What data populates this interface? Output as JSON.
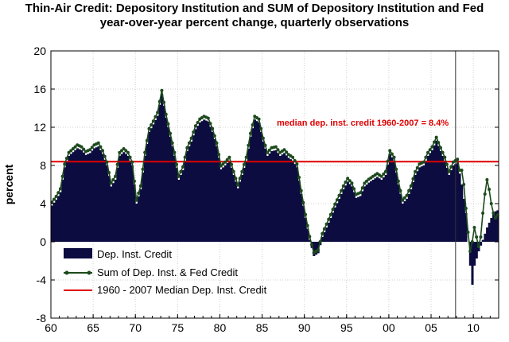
{
  "chart_data": {
    "type": "bar",
    "title_line1": "Thin-Air Credit: Depository Institution and SUM of Depository Institution and Fed",
    "title_line2": "year-over-year percent change, quarterly observations",
    "ylabel": "percent",
    "xlabel": "",
    "xlim": [
      1960,
      2013
    ],
    "ylim": [
      -8,
      20
    ],
    "yticks": [
      -8,
      -4,
      0,
      4,
      8,
      12,
      16,
      20
    ],
    "xticks": [
      1960,
      1965,
      1970,
      1975,
      1980,
      1985,
      1990,
      1995,
      2000,
      2005,
      2010
    ],
    "xtick_labels": [
      "60",
      "65",
      "70",
      "75",
      "80",
      "85",
      "90",
      "95",
      "00",
      "05",
      "10"
    ],
    "grid": true,
    "legend_position": "bottom-left",
    "vline_x": 2007.9,
    "annotation": "median dep. inst. credit 1960-2007 = 8.4%",
    "knots": [
      [
        1960.0,
        3.8
      ],
      [
        1960.5,
        4.4
      ],
      [
        1961.0,
        5.2
      ],
      [
        1961.5,
        7.8
      ],
      [
        1962.0,
        9.0
      ],
      [
        1962.5,
        9.4
      ],
      [
        1963.0,
        9.8
      ],
      [
        1963.5,
        9.6
      ],
      [
        1964.0,
        9.1
      ],
      [
        1964.5,
        9.3
      ],
      [
        1965.0,
        9.8
      ],
      [
        1965.5,
        10.0
      ],
      [
        1966.0,
        9.2
      ],
      [
        1966.5,
        8.0
      ],
      [
        1967.0,
        5.8
      ],
      [
        1967.5,
        6.5
      ],
      [
        1968.0,
        9.0
      ],
      [
        1968.5,
        9.4
      ],
      [
        1969.0,
        9.0
      ],
      [
        1969.5,
        8.0
      ],
      [
        1970.0,
        4.0
      ],
      [
        1970.5,
        5.5
      ],
      [
        1971.0,
        9.0
      ],
      [
        1971.5,
        11.5
      ],
      [
        1972.0,
        12.3
      ],
      [
        1972.5,
        13.2
      ],
      [
        1973.0,
        15.5
      ],
      [
        1973.5,
        13.0
      ],
      [
        1974.0,
        11.0
      ],
      [
        1974.5,
        9.0
      ],
      [
        1975.0,
        6.5
      ],
      [
        1975.5,
        7.5
      ],
      [
        1976.0,
        9.5
      ],
      [
        1976.5,
        10.5
      ],
      [
        1977.0,
        11.8
      ],
      [
        1977.5,
        12.5
      ],
      [
        1978.0,
        12.8
      ],
      [
        1978.5,
        12.6
      ],
      [
        1979.0,
        11.5
      ],
      [
        1979.5,
        10.0
      ],
      [
        1980.0,
        7.6
      ],
      [
        1980.5,
        8.0
      ],
      [
        1981.0,
        8.5
      ],
      [
        1981.5,
        7.0
      ],
      [
        1982.0,
        5.6
      ],
      [
        1982.5,
        7.0
      ],
      [
        1983.0,
        8.5
      ],
      [
        1983.5,
        11.0
      ],
      [
        1984.0,
        12.8
      ],
      [
        1984.5,
        12.5
      ],
      [
        1985.0,
        10.5
      ],
      [
        1985.5,
        9.0
      ],
      [
        1986.0,
        9.5
      ],
      [
        1986.5,
        9.6
      ],
      [
        1987.0,
        9.0
      ],
      [
        1987.5,
        9.3
      ],
      [
        1988.0,
        8.8
      ],
      [
        1988.5,
        8.5
      ],
      [
        1989.0,
        7.8
      ],
      [
        1989.5,
        5.0
      ],
      [
        1990.0,
        2.5
      ],
      [
        1990.5,
        0.2
      ],
      [
        1991.0,
        -1.5
      ],
      [
        1991.5,
        -1.2
      ],
      [
        1992.0,
        0.5
      ],
      [
        1992.5,
        1.5
      ],
      [
        1993.0,
        2.5
      ],
      [
        1993.5,
        3.6
      ],
      [
        1994.0,
        4.5
      ],
      [
        1994.5,
        5.5
      ],
      [
        1995.0,
        6.3
      ],
      [
        1995.5,
        5.8
      ],
      [
        1996.0,
        4.6
      ],
      [
        1996.5,
        4.8
      ],
      [
        1997.0,
        5.8
      ],
      [
        1997.5,
        6.2
      ],
      [
        1998.0,
        6.5
      ],
      [
        1998.5,
        6.8
      ],
      [
        1999.0,
        6.5
      ],
      [
        1999.5,
        7.0
      ],
      [
        2000.0,
        9.2
      ],
      [
        2000.5,
        8.5
      ],
      [
        2001.0,
        6.0
      ],
      [
        2001.5,
        4.0
      ],
      [
        2002.0,
        4.5
      ],
      [
        2002.5,
        5.5
      ],
      [
        2003.0,
        7.0
      ],
      [
        2003.5,
        7.8
      ],
      [
        2004.0,
        8.0
      ],
      [
        2004.5,
        9.0
      ],
      [
        2005.0,
        9.6
      ],
      [
        2005.5,
        10.6
      ],
      [
        2006.0,
        9.5
      ],
      [
        2006.5,
        8.5
      ],
      [
        2007.0,
        7.0
      ],
      [
        2007.5,
        8.0
      ],
      [
        2008.0,
        8.3
      ],
      [
        2008.5,
        6.0
      ],
      [
        2009.0,
        3.0
      ],
      [
        2009.25,
        0.0
      ],
      [
        2009.5,
        -2.5
      ],
      [
        2009.75,
        -4.5
      ],
      [
        2010.0,
        -2.5
      ],
      [
        2010.5,
        -1.0
      ],
      [
        2011.0,
        0.2
      ],
      [
        2011.5,
        1.5
      ],
      [
        2012.0,
        2.5
      ],
      [
        2012.5,
        3.2
      ],
      [
        2012.99,
        3.4
      ]
    ],
    "series": [
      {
        "name": "Dep. Inst. Credit",
        "type": "bar",
        "color": "#0c0c40"
      },
      {
        "name": "Sum of Dep. Inst. & Fed Credit",
        "type": "line",
        "color": "#1d4a1d",
        "overrides": [
          [
            2008.5,
            7.5
          ],
          [
            2008.75,
            6.0
          ],
          [
            2009.0,
            3.5
          ],
          [
            2009.25,
            1.0
          ],
          [
            2009.5,
            -1.0
          ],
          [
            2009.75,
            0.0
          ],
          [
            2010.0,
            1.5
          ],
          [
            2010.25,
            0.5
          ],
          [
            2010.5,
            -0.5
          ],
          [
            2010.75,
            0.5
          ],
          [
            2011.0,
            3.0
          ],
          [
            2011.25,
            5.0
          ],
          [
            2011.5,
            6.5
          ],
          [
            2011.75,
            5.5
          ],
          [
            2012.0,
            4.0
          ],
          [
            2012.25,
            3.0
          ],
          [
            2012.5,
            2.5
          ],
          [
            2012.75,
            2.8
          ]
        ]
      },
      {
        "name": "1960 - 2007 Median Dep. Inst. Credit",
        "type": "hline",
        "value": 8.4,
        "color": "#e00000"
      }
    ]
  }
}
